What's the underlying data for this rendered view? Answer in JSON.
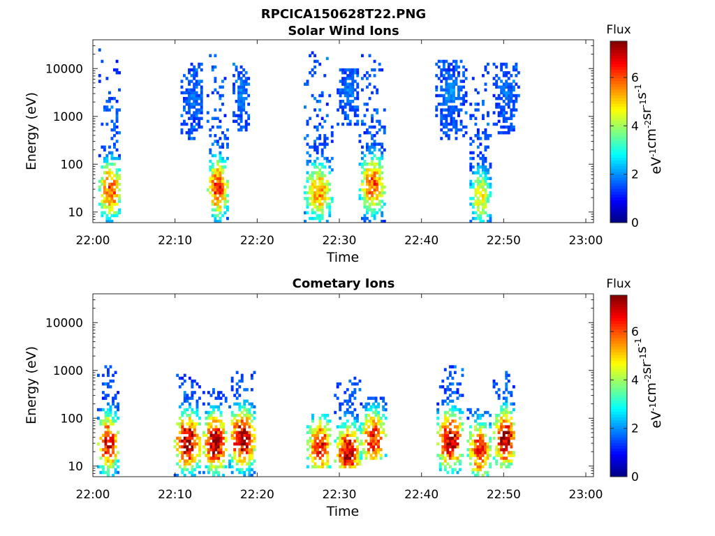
{
  "figure": {
    "file_title": "RPCICA150628T22.PNG"
  },
  "chart_data": [
    {
      "type": "heatmap",
      "title": "Solar Wind Ions",
      "xlabel": "Time",
      "ylabel": "Energy (eV)",
      "x_range": [
        "22:00",
        "23:00"
      ],
      "x_ticks": [
        "22:00",
        "22:10",
        "22:20",
        "22:30",
        "22:40",
        "22:50",
        "23:00"
      ],
      "y_scale": "log",
      "y_range": [
        6,
        40000
      ],
      "y_ticks": [
        10,
        100,
        1000,
        10000
      ],
      "y_tick_labels": [
        "10",
        "100",
        "1000",
        "10000"
      ],
      "colorbar": {
        "title": "Flux",
        "label": "eV-1cm-2sr-1s-1",
        "range": [
          0,
          7.5
        ],
        "ticks": [
          "0",
          "2",
          "4",
          "6"
        ],
        "colormap": "jet"
      },
      "bursts": [
        {
          "t_start": "22:00:40",
          "t_end": "22:03:20",
          "emin": 6,
          "emax": 25000,
          "peak_energy": 28,
          "peak_flux": 6.2
        },
        {
          "t_start": "22:10:40",
          "t_end": "22:13:20",
          "emin": 300,
          "emax": 12000,
          "peak_energy": 2000,
          "peak_flux": 1.8
        },
        {
          "t_start": "22:13:50",
          "t_end": "22:16:20",
          "emin": 6,
          "emax": 20000,
          "peak_energy": 30,
          "peak_flux": 6.4
        },
        {
          "t_start": "22:17:00",
          "t_end": "22:19:00",
          "emin": 400,
          "emax": 12000,
          "peak_energy": 3000,
          "peak_flux": 1.9
        },
        {
          "t_start": "22:25:40",
          "t_end": "22:29:00",
          "emin": 6,
          "emax": 22000,
          "peak_energy": 25,
          "peak_flux": 5.5
        },
        {
          "t_start": "22:29:40",
          "t_end": "22:32:20",
          "emin": 600,
          "emax": 10000,
          "peak_energy": 3000,
          "peak_flux": 1.9
        },
        {
          "t_start": "22:32:20",
          "t_end": "22:35:30",
          "emin": 6,
          "emax": 20000,
          "peak_energy": 35,
          "peak_flux": 6.0
        },
        {
          "t_start": "22:41:40",
          "t_end": "22:45:20",
          "emin": 300,
          "emax": 15000,
          "peak_energy": 3000,
          "peak_flux": 2.0
        },
        {
          "t_start": "22:45:50",
          "t_end": "22:48:20",
          "emin": 6,
          "emax": 20000,
          "peak_energy": 20,
          "peak_flux": 4.8
        },
        {
          "t_start": "22:48:40",
          "t_end": "22:51:40",
          "emin": 400,
          "emax": 12000,
          "peak_energy": 3000,
          "peak_flux": 1.8
        }
      ]
    },
    {
      "type": "heatmap",
      "title": "Cometary Ions",
      "xlabel": "Time",
      "ylabel": "Energy (eV)",
      "x_range": [
        "22:00",
        "23:00"
      ],
      "x_ticks": [
        "22:00",
        "22:10",
        "22:20",
        "22:30",
        "22:40",
        "22:50",
        "23:00"
      ],
      "y_scale": "log",
      "y_range": [
        6,
        40000
      ],
      "y_ticks": [
        10,
        100,
        1000,
        10000
      ],
      "y_tick_labels": [
        "10",
        "100",
        "1000",
        "10000"
      ],
      "colorbar": {
        "title": "Flux",
        "label": "eV-1cm-2sr-1s-1",
        "range": [
          0,
          7.5
        ],
        "ticks": [
          "0",
          "2",
          "4",
          "6"
        ],
        "colormap": "jet"
      },
      "bursts": [
        {
          "t_start": "22:00:30",
          "t_end": "22:03:00",
          "emin": 6,
          "emax": 1200,
          "peak_energy": 28,
          "peak_flux": 6.8
        },
        {
          "t_start": "22:09:50",
          "t_end": "22:13:00",
          "emin": 6,
          "emax": 900,
          "peak_energy": 30,
          "peak_flux": 7.4
        },
        {
          "t_start": "22:13:20",
          "t_end": "22:16:10",
          "emin": 6,
          "emax": 400,
          "peak_energy": 30,
          "peak_flux": 7.4
        },
        {
          "t_start": "22:16:30",
          "t_end": "22:19:40",
          "emin": 6,
          "emax": 900,
          "peak_energy": 35,
          "peak_flux": 7.5
        },
        {
          "t_start": "22:26:00",
          "t_end": "22:29:00",
          "emin": 8,
          "emax": 120,
          "peak_energy": 25,
          "peak_flux": 6.6
        },
        {
          "t_start": "22:29:20",
          "t_end": "22:32:30",
          "emin": 8,
          "emax": 700,
          "peak_energy": 18,
          "peak_flux": 7.0
        },
        {
          "t_start": "22:32:30",
          "t_end": "22:35:30",
          "emin": 12,
          "emax": 250,
          "peak_energy": 35,
          "peak_flux": 6.6
        },
        {
          "t_start": "22:41:50",
          "t_end": "22:45:00",
          "emin": 6,
          "emax": 1200,
          "peak_energy": 32,
          "peak_flux": 7.3
        },
        {
          "t_start": "22:45:30",
          "t_end": "22:48:20",
          "emin": 6,
          "emax": 150,
          "peak_energy": 20,
          "peak_flux": 6.5
        },
        {
          "t_start": "22:48:40",
          "t_end": "22:51:20",
          "emin": 8,
          "emax": 900,
          "peak_energy": 35,
          "peak_flux": 7.5
        }
      ]
    }
  ]
}
